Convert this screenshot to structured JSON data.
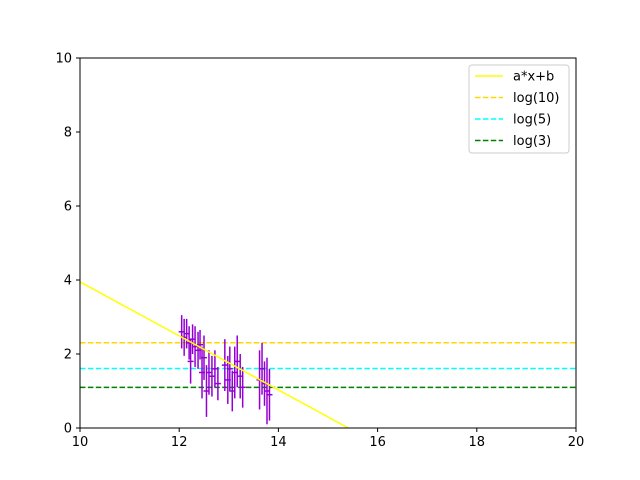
{
  "chart_data": {
    "type": "scatter",
    "title": "",
    "xlabel": "",
    "ylabel": "",
    "xlim": [
      10,
      20
    ],
    "ylim": [
      0,
      10
    ],
    "x_ticks": [
      "10",
      "12",
      "14",
      "16",
      "18",
      "20"
    ],
    "y_ticks": [
      "0",
      "2",
      "4",
      "6",
      "8",
      "10"
    ],
    "grid": false,
    "legend_position": "top-right",
    "fit_line": {
      "name": "a*x+b",
      "color": "#ffff00",
      "x": [
        10,
        15.41
      ],
      "y": [
        3.95,
        0
      ]
    },
    "hlines": [
      {
        "name": "log(10)",
        "y": 2.303,
        "color": "#ffd700"
      },
      {
        "name": "log(5)",
        "y": 1.609,
        "color": "#00ffff"
      },
      {
        "name": "log(3)",
        "y": 1.099,
        "color": "#008000"
      }
    ],
    "error_points": {
      "color": "#9400d3",
      "points": [
        {
          "x": 12.05,
          "y": 2.6,
          "err": 0.45
        },
        {
          "x": 12.1,
          "y": 2.45,
          "err": 0.5
        },
        {
          "x": 12.15,
          "y": 2.55,
          "err": 0.4
        },
        {
          "x": 12.2,
          "y": 2.3,
          "err": 0.45
        },
        {
          "x": 12.23,
          "y": 1.8,
          "err": 0.6
        },
        {
          "x": 12.27,
          "y": 2.4,
          "err": 0.4
        },
        {
          "x": 12.32,
          "y": 2.2,
          "err": 0.55
        },
        {
          "x": 12.38,
          "y": 2.1,
          "err": 0.5
        },
        {
          "x": 12.42,
          "y": 2.25,
          "err": 0.4
        },
        {
          "x": 12.46,
          "y": 1.5,
          "err": 0.7
        },
        {
          "x": 12.5,
          "y": 1.9,
          "err": 0.6
        },
        {
          "x": 12.55,
          "y": 1.0,
          "err": 0.7
        },
        {
          "x": 12.6,
          "y": 1.5,
          "err": 0.6
        },
        {
          "x": 12.66,
          "y": 1.4,
          "err": 0.55
        },
        {
          "x": 12.72,
          "y": 1.6,
          "err": 0.5
        },
        {
          "x": 12.78,
          "y": 1.2,
          "err": 0.45
        },
        {
          "x": 12.92,
          "y": 1.7,
          "err": 0.7
        },
        {
          "x": 12.98,
          "y": 1.3,
          "err": 0.65
        },
        {
          "x": 13.02,
          "y": 1.6,
          "err": 0.6
        },
        {
          "x": 13.07,
          "y": 1.0,
          "err": 0.55
        },
        {
          "x": 13.12,
          "y": 1.5,
          "err": 0.7
        },
        {
          "x": 13.17,
          "y": 1.8,
          "err": 0.7
        },
        {
          "x": 13.23,
          "y": 1.4,
          "err": 0.6
        },
        {
          "x": 13.28,
          "y": 1.1,
          "err": 0.55
        },
        {
          "x": 13.62,
          "y": 1.3,
          "err": 0.8
        },
        {
          "x": 13.67,
          "y": 1.6,
          "err": 0.7
        },
        {
          "x": 13.72,
          "y": 1.2,
          "err": 0.6
        },
        {
          "x": 13.77,
          "y": 1.0,
          "err": 0.9
        },
        {
          "x": 13.82,
          "y": 0.9,
          "err": 0.7
        }
      ]
    }
  }
}
